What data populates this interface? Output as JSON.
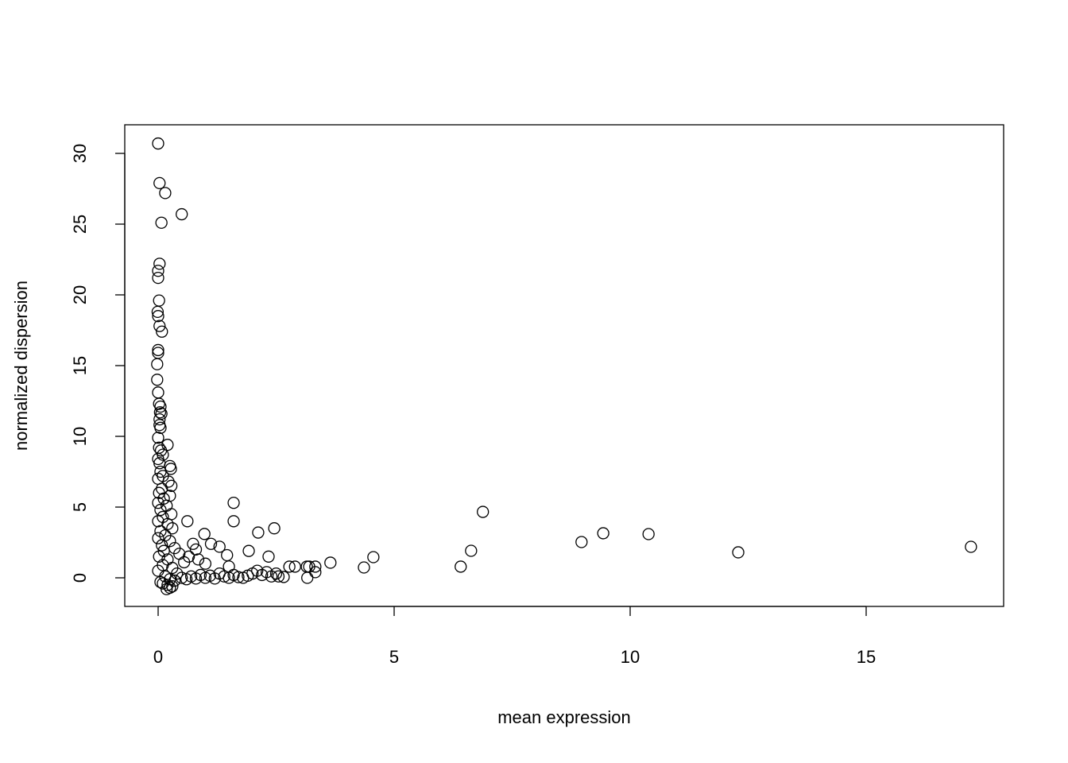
{
  "chart_data": {
    "type": "scatter",
    "title": "",
    "xlabel": "mean expression",
    "ylabel": "normalized dispersion",
    "xlim": [
      -0.7,
      18.0
    ],
    "ylim": [
      -2.0,
      32.0
    ],
    "xticks": [
      0,
      5,
      10,
      15
    ],
    "yticks": [
      0,
      5,
      10,
      15,
      20,
      25,
      30
    ],
    "grid": false,
    "legend": "none",
    "marker": "open-circle",
    "color": "#000000",
    "points": [
      [
        0.0,
        30.7
      ],
      [
        0.03,
        27.9
      ],
      [
        0.15,
        27.2
      ],
      [
        0.5,
        25.7
      ],
      [
        0.07,
        25.1
      ],
      [
        0.03,
        22.2
      ],
      [
        0.0,
        21.7
      ],
      [
        0.0,
        21.2
      ],
      [
        0.02,
        19.6
      ],
      [
        -0.01,
        18.8
      ],
      [
        0.0,
        18.5
      ],
      [
        0.03,
        17.8
      ],
      [
        0.08,
        17.4
      ],
      [
        0.0,
        16.1
      ],
      [
        0.0,
        15.9
      ],
      [
        -0.02,
        15.1
      ],
      [
        -0.02,
        14.0
      ],
      [
        0.0,
        13.1
      ],
      [
        0.02,
        12.3
      ],
      [
        0.05,
        12.1
      ],
      [
        0.04,
        11.7
      ],
      [
        0.07,
        11.6
      ],
      [
        0.03,
        11.2
      ],
      [
        0.03,
        10.8
      ],
      [
        0.05,
        10.6
      ],
      [
        0.0,
        9.9
      ],
      [
        0.2,
        9.4
      ],
      [
        0.02,
        9.2
      ],
      [
        0.06,
        9.0
      ],
      [
        0.1,
        8.7
      ],
      [
        0.0,
        8.4
      ],
      [
        0.03,
        8.1
      ],
      [
        0.25,
        7.9
      ],
      [
        0.27,
        7.7
      ],
      [
        0.05,
        7.5
      ],
      [
        0.1,
        7.2
      ],
      [
        0.0,
        7.0
      ],
      [
        0.22,
        6.8
      ],
      [
        0.28,
        6.5
      ],
      [
        0.08,
        6.3
      ],
      [
        0.02,
        6.0
      ],
      [
        0.25,
        5.8
      ],
      [
        0.12,
        5.6
      ],
      [
        0.0,
        5.3
      ],
      [
        0.18,
        5.1
      ],
      [
        0.05,
        4.8
      ],
      [
        0.28,
        4.5
      ],
      [
        0.1,
        4.3
      ],
      [
        0.0,
        4.0
      ],
      [
        0.2,
        3.8
      ],
      [
        0.3,
        3.5
      ],
      [
        0.05,
        3.3
      ],
      [
        0.15,
        3.0
      ],
      [
        0.0,
        2.8
      ],
      [
        0.25,
        2.6
      ],
      [
        0.08,
        2.3
      ],
      [
        0.35,
        2.1
      ],
      [
        0.12,
        1.9
      ],
      [
        0.45,
        1.7
      ],
      [
        0.02,
        1.5
      ],
      [
        0.2,
        1.3
      ],
      [
        0.55,
        1.1
      ],
      [
        0.1,
        0.9
      ],
      [
        0.3,
        0.7
      ],
      [
        0.0,
        0.5
      ],
      [
        0.4,
        0.3
      ],
      [
        0.15,
        0.1
      ],
      [
        0.25,
        -0.1
      ],
      [
        0.05,
        -0.3
      ],
      [
        0.2,
        -0.5
      ],
      [
        0.25,
        -0.7
      ],
      [
        0.18,
        -0.8
      ],
      [
        0.3,
        -0.6
      ],
      [
        0.1,
        -0.4
      ],
      [
        0.35,
        -0.2
      ],
      [
        0.5,
        0.0
      ],
      [
        0.6,
        -0.1
      ],
      [
        0.7,
        0.1
      ],
      [
        0.8,
        -0.05
      ],
      [
        0.9,
        0.2
      ],
      [
        1.0,
        0.0
      ],
      [
        1.1,
        0.15
      ],
      [
        1.2,
        -0.05
      ],
      [
        1.3,
        0.3
      ],
      [
        1.4,
        0.1
      ],
      [
        1.5,
        0.0
      ],
      [
        1.6,
        0.2
      ],
      [
        1.7,
        0.05
      ],
      [
        1.8,
        0.0
      ],
      [
        1.9,
        0.15
      ],
      [
        2.0,
        0.3
      ],
      [
        2.1,
        0.5
      ],
      [
        2.2,
        0.2
      ],
      [
        2.3,
        0.4
      ],
      [
        2.4,
        0.1
      ],
      [
        2.5,
        0.3
      ],
      [
        0.62,
        4.0
      ],
      [
        1.6,
        5.3
      ],
      [
        1.6,
        4.0
      ],
      [
        0.98,
        3.1
      ],
      [
        2.12,
        3.2
      ],
      [
        2.46,
        3.5
      ],
      [
        1.12,
        2.4
      ],
      [
        1.3,
        2.2
      ],
      [
        0.74,
        2.4
      ],
      [
        0.8,
        2.0
      ],
      [
        1.46,
        1.6
      ],
      [
        1.92,
        1.9
      ],
      [
        2.34,
        1.5
      ],
      [
        0.65,
        1.5
      ],
      [
        0.85,
        1.3
      ],
      [
        1.0,
        1.0
      ],
      [
        1.5,
        0.8
      ],
      [
        3.65,
        1.07
      ],
      [
        4.36,
        0.73
      ],
      [
        4.56,
        1.46
      ],
      [
        6.41,
        0.79
      ],
      [
        6.63,
        1.91
      ],
      [
        6.88,
        4.66
      ],
      [
        8.97,
        2.53
      ],
      [
        9.43,
        3.15
      ],
      [
        10.39,
        3.09
      ],
      [
        12.29,
        1.8
      ],
      [
        17.22,
        2.19
      ],
      [
        2.78,
        0.79
      ],
      [
        2.9,
        0.79
      ],
      [
        3.15,
        0.79
      ],
      [
        3.2,
        0.79
      ],
      [
        3.33,
        0.79
      ],
      [
        3.16,
        0.0
      ],
      [
        3.33,
        0.4
      ],
      [
        2.66,
        0.06
      ],
      [
        2.55,
        0.1
      ]
    ]
  }
}
